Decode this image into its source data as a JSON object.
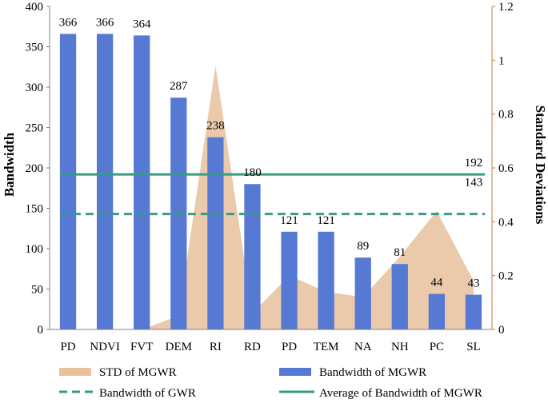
{
  "chart_data": {
    "type": "bar",
    "categories": [
      "PD",
      "NDVI",
      "FVT",
      "DEM",
      "RI",
      "RD",
      "PD",
      "TEM",
      "NA",
      "NH",
      "PC",
      "SL"
    ],
    "ylabel": "Bandwidth",
    "y2label": "Standard Deviations",
    "ylim": [
      0,
      400
    ],
    "y2lim": [
      0,
      1.2
    ],
    "yticks": [
      "0",
      "50",
      "100",
      "150",
      "200",
      "250",
      "300",
      "350",
      "400"
    ],
    "y2ticks": [
      "0",
      "0.2",
      "0.4",
      "0.6",
      "0.8",
      "1",
      "1.2"
    ],
    "series": [
      {
        "name": "Bandwidth of MGWR",
        "kind": "bar",
        "axis": "left",
        "color": "#5679d4",
        "values": [
          366,
          366,
          364,
          287,
          238,
          180,
          121,
          121,
          89,
          81,
          44,
          43
        ],
        "labels": [
          "366",
          "366",
          "364",
          "287",
          "238",
          "180",
          "121",
          "121",
          "89",
          "81",
          "44",
          "43"
        ]
      },
      {
        "name": "STD of MGWR",
        "kind": "area",
        "axis": "right",
        "color": "#e8c09c",
        "values": [
          0.0,
          0.0,
          0.0,
          0.05,
          0.98,
          0.06,
          0.2,
          0.14,
          0.12,
          0.27,
          0.44,
          0.18
        ]
      },
      {
        "name": "Bandwidth of GWR",
        "kind": "dashed-line",
        "axis": "left",
        "color": "#3a9b84",
        "value": 143,
        "label": "143"
      },
      {
        "name": "Average of Bandwidth of MGWR",
        "kind": "line",
        "axis": "left",
        "color": "#3a9b84",
        "value": 192,
        "label": "192"
      }
    ],
    "legend_position": "bottom",
    "grid": false
  }
}
